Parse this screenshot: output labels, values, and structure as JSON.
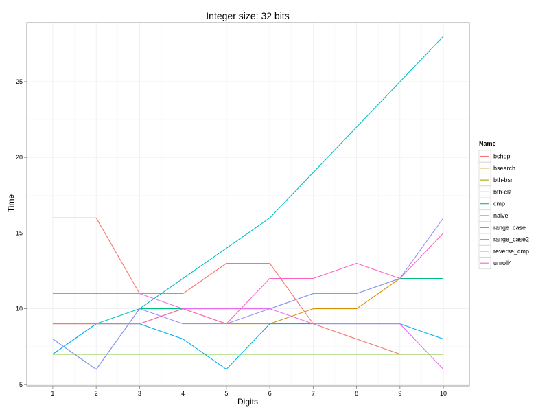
{
  "chart_data": {
    "type": "line",
    "title": "Integer size: 32 bits",
    "xlabel": "Digits",
    "ylabel": "Time",
    "xlim": [
      0.4,
      10.6
    ],
    "ylim": [
      4.9,
      28.9
    ],
    "x_ticks": [
      1,
      2,
      3,
      4,
      5,
      6,
      7,
      8,
      9,
      10
    ],
    "y_ticks": [
      5,
      10,
      15,
      20,
      25
    ],
    "grid": true,
    "legend_title": "Name",
    "legend_position": "right",
    "x": [
      1,
      2,
      3,
      4,
      5,
      6,
      7,
      8,
      9,
      10
    ],
    "series": [
      {
        "name": "bchop",
        "color": "#F8766D",
        "values": [
          16,
          16,
          11,
          11,
          13,
          13,
          9,
          8,
          7,
          7
        ]
      },
      {
        "name": "bsearch",
        "color": "#D89000",
        "values": [
          9,
          9,
          9,
          10,
          9,
          9,
          10,
          10,
          12,
          12
        ]
      },
      {
        "name": "bth-bsr",
        "color": "#A3A500",
        "values": [
          7,
          7,
          7,
          7,
          7,
          7,
          7,
          7,
          7,
          7
        ]
      },
      {
        "name": "bth-clz",
        "color": "#39B600",
        "values": [
          7,
          7,
          7,
          7,
          7,
          7,
          7,
          7,
          7,
          7
        ]
      },
      {
        "name": "cmp",
        "color": "#00BF7D",
        "values": [
          8,
          6,
          10,
          10,
          10,
          10,
          11,
          11,
          12,
          12
        ]
      },
      {
        "name": "naive",
        "color": "#00BFC4",
        "values": [
          7,
          9,
          10,
          12,
          14,
          16,
          19,
          22,
          25,
          28
        ]
      },
      {
        "name": "range_case",
        "color": "#00B0F6",
        "values": [
          7,
          9,
          9,
          8,
          6,
          9,
          9,
          9,
          9,
          8
        ]
      },
      {
        "name": "range_case2",
        "color": "#9590FF",
        "values": [
          8,
          6,
          10,
          9,
          9,
          10,
          11,
          11,
          12,
          16
        ]
      },
      {
        "name": "reverse_cmp",
        "color": "#E76BF3",
        "values": [
          11,
          11,
          11,
          10,
          10,
          10,
          9,
          9,
          9,
          6
        ]
      },
      {
        "name": "unroll4",
        "color": "#FF62BC",
        "values": [
          9,
          9,
          9,
          10,
          9,
          12,
          12,
          13,
          12,
          15
        ]
      }
    ]
  }
}
